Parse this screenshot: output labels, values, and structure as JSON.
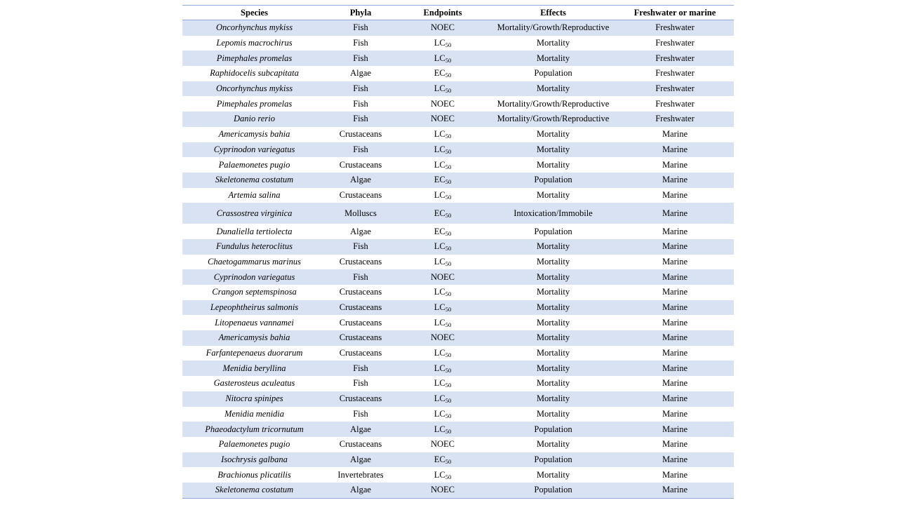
{
  "table": {
    "headers": [
      "Species",
      "Phyla",
      "Endpoints",
      "Effects",
      "Freshwater or marine"
    ],
    "rows": [
      {
        "species": "Oncorhynchus mykiss",
        "phyla": "Fish",
        "endpoint": {
          "base": "NOEC",
          "sub": ""
        },
        "effects": "Mortality/Growth/Reproductive",
        "habitat": "Freshwater"
      },
      {
        "species": "Lepomis macrochirus",
        "phyla": "Fish",
        "endpoint": {
          "base": "LC",
          "sub": "50"
        },
        "effects": "Mortality",
        "habitat": "Freshwater"
      },
      {
        "species": "Pimephales promelas",
        "phyla": "Fish",
        "endpoint": {
          "base": "LC",
          "sub": "50"
        },
        "effects": "Mortality",
        "habitat": "Freshwater"
      },
      {
        "species": "Raphidocelis subcapitata",
        "phyla": "Algae",
        "endpoint": {
          "base": "EC",
          "sub": "50"
        },
        "effects": "Population",
        "habitat": "Freshwater"
      },
      {
        "species": "Oncorhynchus mykiss",
        "phyla": "Fish",
        "endpoint": {
          "base": "LC",
          "sub": "50"
        },
        "effects": "Mortality",
        "habitat": "Freshwater"
      },
      {
        "species": "Pimephales promelas",
        "phyla": "Fish",
        "endpoint": {
          "base": "NOEC",
          "sub": ""
        },
        "effects": "Mortality/Growth/Reproductive",
        "habitat": "Freshwater"
      },
      {
        "species": "Danio rerio",
        "phyla": "Fish",
        "endpoint": {
          "base": "NOEC",
          "sub": ""
        },
        "effects": "Mortality/Growth/Reproductive",
        "habitat": "Freshwater"
      },
      {
        "species": "Americamysis bahia",
        "phyla": "Crustaceans",
        "endpoint": {
          "base": "LC",
          "sub": "50"
        },
        "effects": "Mortality",
        "habitat": "Marine"
      },
      {
        "species": "Cyprinodon variegatus",
        "phyla": "Fish",
        "endpoint": {
          "base": "LC",
          "sub": "50"
        },
        "effects": "Mortality",
        "habitat": "Marine"
      },
      {
        "species": "Palaemonetes pugio",
        "phyla": "Crustaceans",
        "endpoint": {
          "base": "LC",
          "sub": "50"
        },
        "effects": "Mortality",
        "habitat": "Marine"
      },
      {
        "species": "Skeletonema costatum",
        "phyla": "Algae",
        "endpoint": {
          "base": "EC",
          "sub": "50"
        },
        "effects": "Population",
        "habitat": "Marine"
      },
      {
        "species": "Artemia salina",
        "phyla": "Crustaceans",
        "endpoint": {
          "base": "LC",
          "sub": "50"
        },
        "effects": "Mortality",
        "habitat": "Marine"
      },
      {
        "species": "Crassostrea virginica",
        "phyla": "Molluscs",
        "endpoint": {
          "base": "EC",
          "sub": "50"
        },
        "effects": "Intoxication/Immobile",
        "habitat": "Marine"
      },
      {
        "species": "Dunaliella tertiolecta",
        "phyla": "Algae",
        "endpoint": {
          "base": "EC",
          "sub": "50"
        },
        "effects": "Population",
        "habitat": "Marine"
      },
      {
        "species": "Fundulus heteroclitus",
        "phyla": "Fish",
        "endpoint": {
          "base": "LC",
          "sub": "50"
        },
        "effects": "Mortality",
        "habitat": "Marine"
      },
      {
        "species": "Chaetogammarus marinus",
        "phyla": "Crustaceans",
        "endpoint": {
          "base": "LC",
          "sub": "50"
        },
        "effects": "Mortality",
        "habitat": "Marine"
      },
      {
        "species": "Cyprinodon variegatus",
        "phyla": "Fish",
        "endpoint": {
          "base": "NOEC",
          "sub": ""
        },
        "effects": "Mortality",
        "habitat": "Marine"
      },
      {
        "species": "Crangon septemspinosa",
        "phyla": "Crustaceans",
        "endpoint": {
          "base": "LC",
          "sub": "50"
        },
        "effects": "Mortality",
        "habitat": "Marine"
      },
      {
        "species": "Lepeophtheirus salmonis",
        "phyla": "Crustaceans",
        "endpoint": {
          "base": "LC",
          "sub": "50"
        },
        "effects": "Mortality",
        "habitat": "Marine"
      },
      {
        "species": "Litopenaeus vannamei",
        "phyla": "Crustaceans",
        "endpoint": {
          "base": "LC",
          "sub": "50"
        },
        "effects": "Mortality",
        "habitat": "Marine"
      },
      {
        "species": "Americamysis bahia",
        "phyla": "Crustaceans",
        "endpoint": {
          "base": "NOEC",
          "sub": ""
        },
        "effects": "Mortality",
        "habitat": "Marine"
      },
      {
        "species": "Farfantepenaeus duorarum",
        "phyla": "Crustaceans",
        "endpoint": {
          "base": "LC",
          "sub": "50"
        },
        "effects": "Mortality",
        "habitat": "Marine"
      },
      {
        "species": "Menidia beryllina",
        "phyla": "Fish",
        "endpoint": {
          "base": "LC",
          "sub": "50"
        },
        "effects": "Mortality",
        "habitat": "Marine"
      },
      {
        "species": "Gasterosteus aculeatus",
        "phyla": "Fish",
        "endpoint": {
          "base": "LC",
          "sub": "50"
        },
        "effects": "Mortality",
        "habitat": "Marine"
      },
      {
        "species": "Nitocra spinipes",
        "phyla": "Crustaceans",
        "endpoint": {
          "base": "LC",
          "sub": "50"
        },
        "effects": "Mortality",
        "habitat": "Marine"
      },
      {
        "species": "Menidia menidia",
        "phyla": "Fish",
        "endpoint": {
          "base": "LC",
          "sub": "50"
        },
        "effects": "Mortality",
        "habitat": "Marine"
      },
      {
        "species": "Phaeodactylum tricornutum",
        "phyla": "Algae",
        "endpoint": {
          "base": "LC",
          "sub": "50"
        },
        "effects": "Population",
        "habitat": "Marine"
      },
      {
        "species": "Palaemonetes pugio",
        "phyla": "Crustaceans",
        "endpoint": {
          "base": "NOEC",
          "sub": ""
        },
        "effects": "Mortality",
        "habitat": "Marine"
      },
      {
        "species": "Isochrysis galbana",
        "phyla": "Algae",
        "endpoint": {
          "base": "EC",
          "sub": "50"
        },
        "effects": "Population",
        "habitat": "Marine"
      },
      {
        "species": "Brachionus plicatilis",
        "phyla": "Invertebrates",
        "endpoint": {
          "base": "LC",
          "sub": "50"
        },
        "effects": "Mortality",
        "habitat": "Marine"
      },
      {
        "species": "Skeletonema costatum",
        "phyla": "Algae",
        "endpoint": {
          "base": "NOEC",
          "sub": ""
        },
        "effects": "Population",
        "habitat": "Marine"
      }
    ]
  },
  "colors": {
    "stripe": "#d9e2f3",
    "rule": "#8ea9db"
  }
}
